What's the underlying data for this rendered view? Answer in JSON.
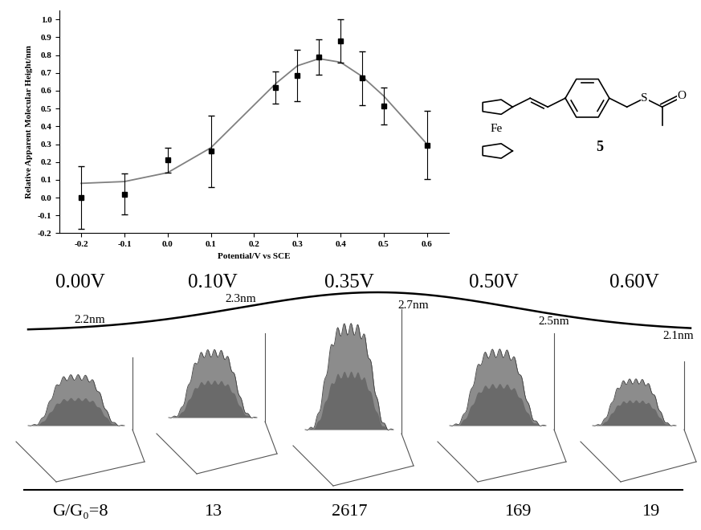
{
  "chart_data": {
    "type": "scatter",
    "x_label": "Potential/V vs SCE",
    "y_label": "Relative Apparent Molecular Height/nm",
    "series": [
      {
        "type": "scatter",
        "color": "#000000",
        "marker": "square",
        "x": [
          -0.2,
          -0.1,
          0.0,
          0.1,
          0.25,
          0.3,
          0.35,
          0.4,
          0.45,
          0.5,
          0.6
        ],
        "values": [
          0.0,
          0.02,
          0.21,
          0.26,
          0.62,
          0.685,
          0.79,
          0.88,
          0.67,
          0.515,
          0.295
        ],
        "errors": [
          0.175,
          0.115,
          0.07,
          0.2,
          0.09,
          0.145,
          0.1,
          0.12,
          0.15,
          0.105,
          0.19
        ]
      },
      {
        "type": "line",
        "color": "#808080",
        "line_style": "solid",
        "x": [
          -0.2,
          -0.1,
          0.0,
          0.1,
          0.2,
          0.25,
          0.3,
          0.35,
          0.4,
          0.45,
          0.5,
          0.6
        ],
        "values": [
          0.08,
          0.09,
          0.14,
          0.28,
          0.52,
          0.64,
          0.74,
          0.78,
          0.76,
          0.68,
          0.57,
          0.3
        ]
      }
    ],
    "xlim": [
      -0.25,
      0.65
    ],
    "ylim": [
      -0.2,
      1.05
    ],
    "xticks": [
      -0.2,
      -0.1,
      0.0,
      0.1,
      0.2,
      0.3,
      0.4,
      0.5,
      0.6
    ],
    "yticks": [
      -0.2,
      -0.1,
      0.0,
      0.1,
      0.2,
      0.3,
      0.4,
      0.5,
      0.6,
      0.7,
      0.8,
      0.9,
      1.0
    ]
  },
  "structure": {
    "metal": "Fe",
    "sulfur": "S",
    "oxygen": "O",
    "label": "5"
  },
  "panels": [
    {
      "potential": "0.00V",
      "height": "2.2nm",
      "conductance": "G/G₀=8"
    },
    {
      "potential": "0.10V",
      "height": "2.3nm",
      "conductance": "13"
    },
    {
      "potential": "0.35V",
      "height": "2.7nm",
      "conductance": "2617"
    },
    {
      "potential": "0.50V",
      "height": "2.5nm",
      "conductance": "169"
    },
    {
      "potential": "0.60V",
      "height": "2.1nm",
      "conductance": "19"
    }
  ]
}
